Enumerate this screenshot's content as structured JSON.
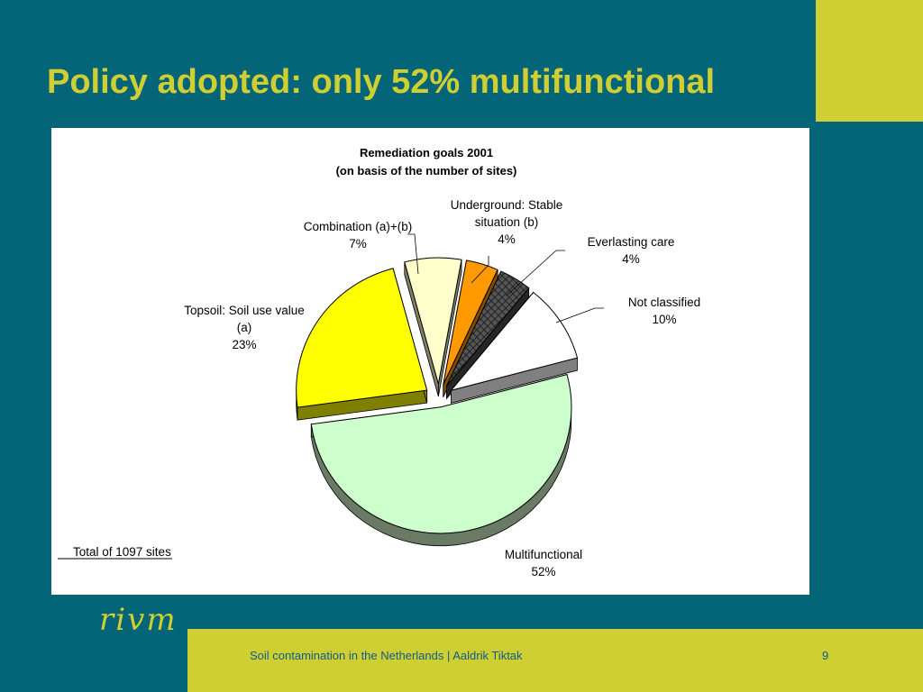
{
  "slide": {
    "title": "Policy adopted: only 52% multifunctional",
    "footer": "Soil contamination in the Netherlands | Aaldrik Tiktak",
    "page_number": "9",
    "logo": "rivm",
    "colors": {
      "background": "#046579",
      "accent": "#cfcf33",
      "footer_text": "#0d5c8c"
    }
  },
  "chart_data": {
    "type": "pie",
    "title": "Remediation goals 2001",
    "subtitle": "(on basis of the number of sites)",
    "note": "Total of 1097 sites",
    "slices": [
      {
        "name": "Multifunctional",
        "label_lines": [
          "Multifunctional"
        ],
        "value": 52,
        "value_label": "52%",
        "color": "#ccffcc",
        "side_color": "#6b7a64"
      },
      {
        "name": "Topsoil: Soil use value (a)",
        "label_lines": [
          "Topsoil: Soil use value",
          "(a)"
        ],
        "value": 23,
        "value_label": "23%",
        "color": "#ffff00",
        "side_color": "#808000"
      },
      {
        "name": "Combination (a)+(b)",
        "label_lines": [
          "Combination (a)+(b)"
        ],
        "value": 7,
        "value_label": "7%",
        "color": "#ffffcc",
        "side_color": "#808066"
      },
      {
        "name": "Underground: Stable situation (b)",
        "label_lines": [
          "Underground: Stable",
          "situation (b)"
        ],
        "value": 4,
        "value_label": "4%",
        "color": "#ff9900",
        "side_color": "#804d00"
      },
      {
        "name": "Everlasting care",
        "label_lines": [
          "Everlasting care"
        ],
        "value": 4,
        "value_label": "4%",
        "color": "#4d4d4d",
        "side_color": "#262626",
        "pattern": "grid"
      },
      {
        "name": "Not classified",
        "label_lines": [
          "Not classified"
        ],
        "value": 10,
        "value_label": "10%",
        "color": "#ffffff",
        "side_color": "#808080"
      }
    ]
  }
}
